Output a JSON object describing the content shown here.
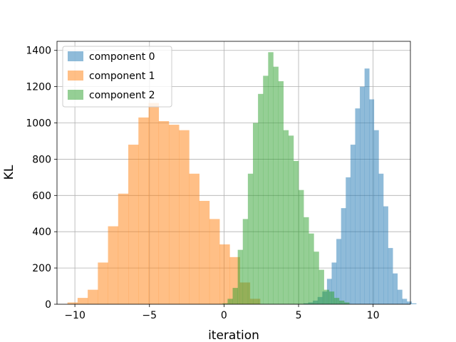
{
  "chart_data": {
    "type": "bar",
    "subtype": "overlaid-histogram",
    "title": "",
    "xlabel": "iteration",
    "ylabel": "KL",
    "xlim": [
      -11.2,
      12.5
    ],
    "ylim": [
      0,
      1450
    ],
    "xticks": [
      -10,
      -5,
      0,
      5,
      10
    ],
    "xtick_labels": [
      "−10",
      "−5",
      "0",
      "5",
      "10"
    ],
    "yticks": [
      0,
      200,
      400,
      600,
      800,
      1000,
      1200,
      1400
    ],
    "ytick_labels": [
      "0",
      "200",
      "400",
      "600",
      "800",
      "1000",
      "1200",
      "1400"
    ],
    "grid": true,
    "legend_position": "top-left",
    "series": [
      {
        "name": "component 0",
        "color": "#1f77b4",
        "opacity": 0.5,
        "bin_start": 5.33,
        "bin_width": 0.315,
        "counts": [
          5,
          10,
          20,
          40,
          70,
          140,
          230,
          360,
          530,
          700,
          880,
          1080,
          1200,
          1300,
          1130,
          960,
          720,
          540,
          310,
          170,
          80,
          30,
          15,
          5
        ]
      },
      {
        "name": "component 1",
        "color": "#ff7f0e",
        "opacity": 0.5,
        "bin_start": -10.5,
        "bin_width": 0.68,
        "counts": [
          10,
          35,
          80,
          230,
          430,
          610,
          880,
          1030,
          1110,
          1010,
          990,
          960,
          720,
          570,
          470,
          330,
          260,
          120,
          30
        ]
      },
      {
        "name": "component 2",
        "color": "#2ca02c",
        "opacity": 0.5,
        "bin_start": -0.1,
        "bin_width": 0.34,
        "counts": [
          5,
          30,
          90,
          300,
          470,
          720,
          1000,
          1160,
          1260,
          1390,
          1310,
          1230,
          960,
          930,
          790,
          630,
          480,
          390,
          290,
          190,
          80,
          70,
          35,
          20,
          10
        ]
      }
    ]
  }
}
